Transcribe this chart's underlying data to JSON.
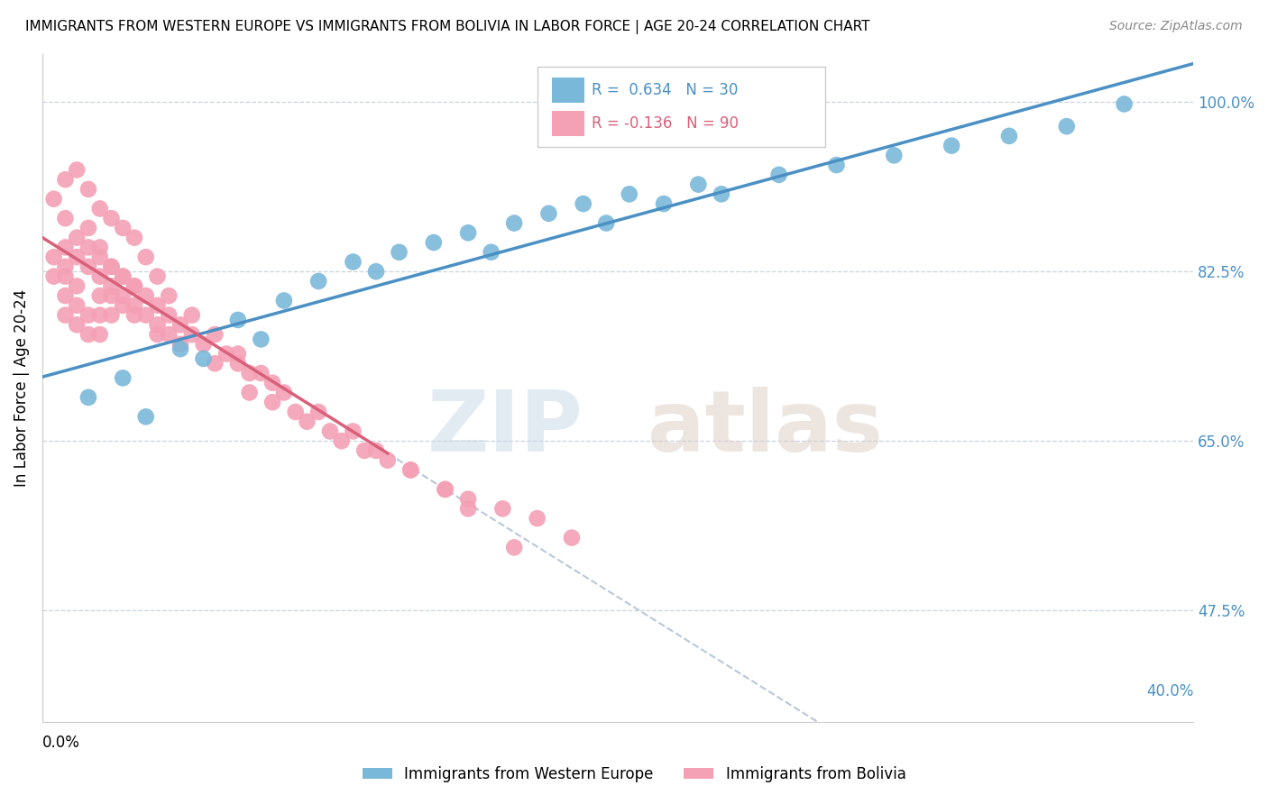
{
  "title": "IMMIGRANTS FROM WESTERN EUROPE VS IMMIGRANTS FROM BOLIVIA IN LABOR FORCE | AGE 20-24 CORRELATION CHART",
  "source": "Source: ZipAtlas.com",
  "ylabel": "In Labor Force | Age 20-24",
  "xlim": [
    0.0,
    1.0
  ],
  "ylim": [
    0.36,
    1.05
  ],
  "y_ticks": [
    1.0,
    0.825,
    0.65,
    0.475
  ],
  "blue_R": 0.634,
  "blue_N": 30,
  "pink_R": -0.136,
  "pink_N": 90,
  "blue_color": "#7ab8d9",
  "pink_color": "#f4a0b5",
  "blue_line_color": "#4a90c4",
  "pink_line_color": "#d9607a",
  "dashed_line_color": "#b8c8d8",
  "legend_blue_label": "Immigrants from Western Europe",
  "legend_pink_label": "Immigrants from Bolivia",
  "blue_scatter_x": [
    0.04,
    0.07,
    0.09,
    0.12,
    0.14,
    0.17,
    0.19,
    0.21,
    0.24,
    0.27,
    0.29,
    0.31,
    0.34,
    0.37,
    0.39,
    0.41,
    0.44,
    0.47,
    0.49,
    0.51,
    0.54,
    0.57,
    0.59,
    0.64,
    0.69,
    0.74,
    0.79,
    0.84,
    0.89,
    0.94
  ],
  "blue_scatter_y": [
    0.695,
    0.715,
    0.675,
    0.745,
    0.735,
    0.775,
    0.755,
    0.795,
    0.815,
    0.835,
    0.825,
    0.845,
    0.855,
    0.865,
    0.845,
    0.875,
    0.885,
    0.895,
    0.875,
    0.905,
    0.895,
    0.915,
    0.905,
    0.925,
    0.935,
    0.945,
    0.955,
    0.965,
    0.975,
    0.998
  ],
  "pink_scatter_x": [
    0.01,
    0.01,
    0.02,
    0.02,
    0.02,
    0.02,
    0.02,
    0.03,
    0.03,
    0.03,
    0.03,
    0.04,
    0.04,
    0.04,
    0.04,
    0.05,
    0.05,
    0.05,
    0.05,
    0.05,
    0.06,
    0.06,
    0.06,
    0.06,
    0.07,
    0.07,
    0.07,
    0.08,
    0.08,
    0.08,
    0.09,
    0.09,
    0.1,
    0.1,
    0.1,
    0.11,
    0.11,
    0.12,
    0.12,
    0.13,
    0.14,
    0.15,
    0.16,
    0.17,
    0.18,
    0.18,
    0.2,
    0.2,
    0.22,
    0.23,
    0.25,
    0.26,
    0.28,
    0.3,
    0.32,
    0.35,
    0.37,
    0.4,
    0.43,
    0.46,
    0.01,
    0.02,
    0.02,
    0.03,
    0.03,
    0.04,
    0.04,
    0.05,
    0.05,
    0.06,
    0.06,
    0.07,
    0.07,
    0.08,
    0.08,
    0.09,
    0.1,
    0.11,
    0.13,
    0.15,
    0.17,
    0.19,
    0.21,
    0.24,
    0.27,
    0.29,
    0.32,
    0.35,
    0.37,
    0.41
  ],
  "pink_scatter_y": [
    0.82,
    0.84,
    0.8,
    0.78,
    0.83,
    0.85,
    0.82,
    0.79,
    0.77,
    0.84,
    0.81,
    0.78,
    0.76,
    0.85,
    0.83,
    0.8,
    0.78,
    0.76,
    0.84,
    0.82,
    0.8,
    0.78,
    0.83,
    0.81,
    0.79,
    0.82,
    0.8,
    0.78,
    0.81,
    0.79,
    0.8,
    0.78,
    0.76,
    0.79,
    0.77,
    0.78,
    0.76,
    0.77,
    0.75,
    0.76,
    0.75,
    0.73,
    0.74,
    0.73,
    0.72,
    0.7,
    0.71,
    0.69,
    0.68,
    0.67,
    0.66,
    0.65,
    0.64,
    0.63,
    0.62,
    0.6,
    0.59,
    0.58,
    0.57,
    0.55,
    0.9,
    0.88,
    0.92,
    0.86,
    0.93,
    0.87,
    0.91,
    0.85,
    0.89,
    0.83,
    0.88,
    0.82,
    0.87,
    0.81,
    0.86,
    0.84,
    0.82,
    0.8,
    0.78,
    0.76,
    0.74,
    0.72,
    0.7,
    0.68,
    0.66,
    0.64,
    0.62,
    0.6,
    0.58,
    0.54
  ]
}
